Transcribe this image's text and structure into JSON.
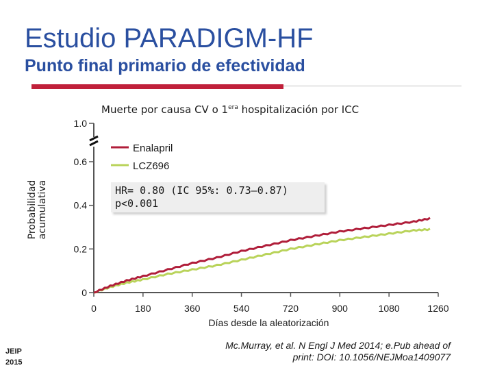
{
  "slide": {
    "title": "Estudio PARADIGM-HF",
    "subtitle": "Punto final primario de efectividad",
    "journal_line1": "JEIP",
    "journal_line2": "2015",
    "citation_line1": "Mc.Murray, et al. N Engl J Med 2014; e.Pub ahead of",
    "citation_line2": "print: DOI: 10.1056/NEJMoa1409077"
  },
  "colors": {
    "accent_blue": "#2a4fa0",
    "accent_red": "#c0203a",
    "enalapril": "#b01e3a",
    "lcz696": "#b9d35a"
  },
  "chart_data": {
    "type": "line",
    "title_pre": "Muerte por causa CV o 1",
    "title_sup": "era",
    "title_post": " hospitalización por ICC",
    "xlabel": "Días desde la aleatorización",
    "ylabel_line1": "Probabilidad",
    "ylabel_line2": "acumulativa",
    "xlim": [
      0,
      1260
    ],
    "ylim": [
      0,
      0.6
    ],
    "y_break_top": 1.0,
    "x_ticks": [
      "0",
      "180",
      "360",
      "540",
      "720",
      "900",
      "1080",
      "1260"
    ],
    "y_ticks": [
      "0",
      "0.2",
      "0.4",
      "0.6",
      "1.0"
    ],
    "annotation_line1": "HR= 0.80 (IC 95%: 0.73–0.87)",
    "annotation_line2": "p<0.001",
    "legend_position": "top-left",
    "series": [
      {
        "name": "Enalapril",
        "x": [
          0,
          60,
          120,
          180,
          270,
          360,
          450,
          540,
          630,
          720,
          810,
          900,
          990,
          1080,
          1170,
          1230
        ],
        "y": [
          0,
          0.03,
          0.055,
          0.075,
          0.105,
          0.135,
          0.16,
          0.19,
          0.215,
          0.24,
          0.26,
          0.28,
          0.295,
          0.31,
          0.325,
          0.34
        ]
      },
      {
        "name": "LCZ696",
        "x": [
          0,
          60,
          120,
          180,
          270,
          360,
          450,
          540,
          630,
          720,
          810,
          900,
          990,
          1080,
          1170,
          1230
        ],
        "y": [
          0,
          0.025,
          0.045,
          0.06,
          0.085,
          0.105,
          0.125,
          0.15,
          0.175,
          0.2,
          0.22,
          0.24,
          0.255,
          0.27,
          0.285,
          0.29
        ]
      }
    ]
  }
}
